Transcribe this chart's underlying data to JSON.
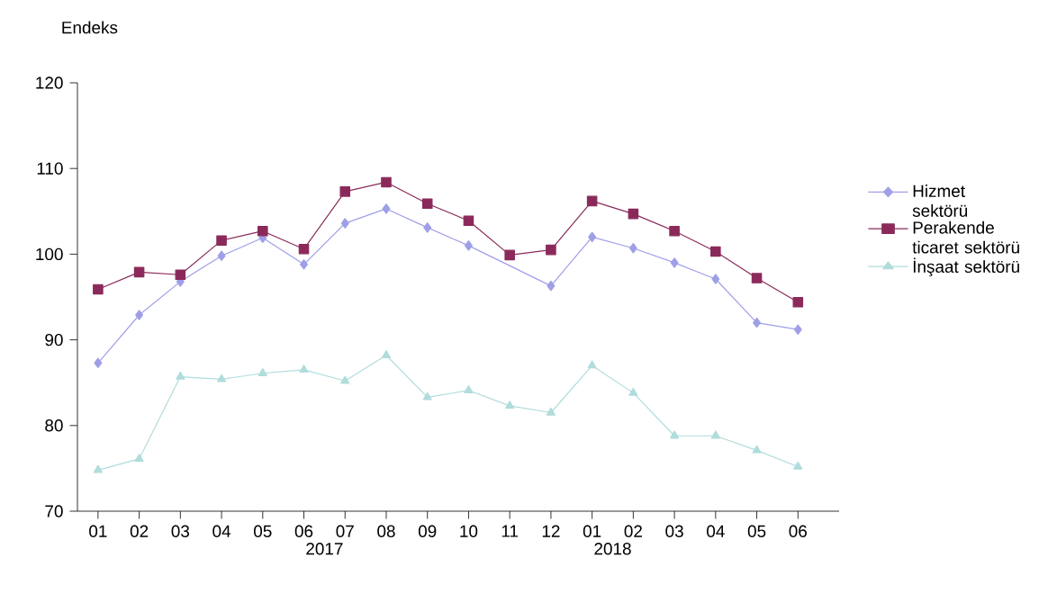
{
  "chart_data": {
    "type": "line",
    "ylabel": "Endeks",
    "categories": [
      "01",
      "02",
      "03",
      "04",
      "05",
      "06",
      "07",
      "08",
      "09",
      "10",
      "11",
      "12",
      "01",
      "02",
      "03",
      "04",
      "05",
      "06"
    ],
    "series": [
      {
        "name": "Hizmet sektörü",
        "color": "#9f9fe8",
        "marker": "diamond",
        "values": [
          87.3,
          92.9,
          96.8,
          99.8,
          101.9,
          98.8,
          103.6,
          105.3,
          103.1,
          101.0,
          null,
          96.3,
          102.0,
          100.7,
          99.0,
          97.1,
          92.0,
          91.2
        ]
      },
      {
        "name": "Perakende ticaret sektörü",
        "color": "#8b2a5a",
        "marker": "square",
        "values": [
          95.9,
          97.9,
          97.6,
          101.6,
          102.7,
          100.6,
          107.3,
          108.4,
          105.9,
          103.9,
          99.9,
          100.5,
          106.2,
          104.7,
          102.7,
          100.3,
          97.2,
          94.4
        ]
      },
      {
        "name": "İnşaat sektörü",
        "color": "#b0dcdc",
        "marker": "triangle",
        "values": [
          74.8,
          76.1,
          85.7,
          85.4,
          86.1,
          86.5,
          85.2,
          88.2,
          83.3,
          84.1,
          82.3,
          81.5,
          87.0,
          83.8,
          78.8,
          78.8,
          77.1,
          75.2
        ]
      }
    ],
    "ylim": [
      70,
      120
    ],
    "yticks": [
      70,
      80,
      90,
      100,
      110,
      120
    ],
    "annotations": [
      "2017",
      "2018"
    ],
    "legend": "right",
    "grid": false
  }
}
